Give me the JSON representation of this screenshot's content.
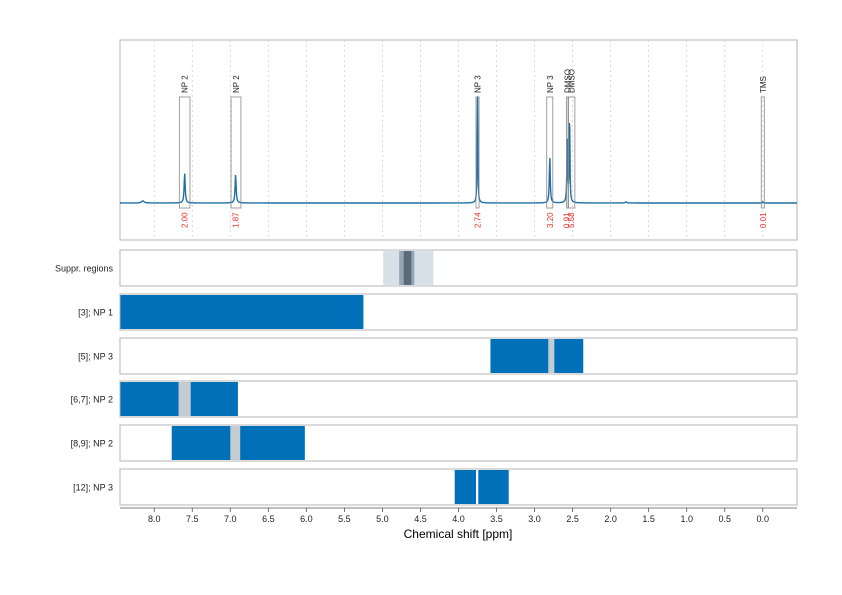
{
  "chart_data": {
    "type": "line",
    "title": "",
    "xlabel": "Chemical shift [ppm]",
    "xlim": [
      8.45,
      -0.45
    ],
    "x_reversed": true,
    "grid": true,
    "x_ticks": [
      8.0,
      7.5,
      7.0,
      6.5,
      6.0,
      5.5,
      5.0,
      4.5,
      4.0,
      3.5,
      3.0,
      2.5,
      2.0,
      1.5,
      1.0,
      0.5,
      0.0
    ],
    "x_tick_labels": [
      "8.0",
      "7.5",
      "7.0",
      "6.5",
      "6.0",
      "5.5",
      "5.0",
      "4.5",
      "4.0",
      "3.5",
      "3.0",
      "2.5",
      "2.0",
      "1.5",
      "1.0",
      "0.5",
      "0.0"
    ],
    "spectrum_color": "#1f6fa8",
    "integral_color": "#e8302a",
    "box_color": "#888888",
    "spectrum": {
      "baseline": 0.0,
      "ylim": [
        -0.3,
        1.0
      ],
      "peaks": [
        {
          "x": 7.6,
          "h": 0.28,
          "w": 0.008
        },
        {
          "x": 6.93,
          "h": 0.27,
          "w": 0.008
        },
        {
          "x": 3.75,
          "h": 1.0,
          "w": 0.005
        },
        {
          "x": 2.8,
          "h": 0.44,
          "w": 0.007
        },
        {
          "x": 2.57,
          "h": 0.58,
          "w": 0.006
        },
        {
          "x": 2.54,
          "h": 0.92,
          "w": 0.005
        },
        {
          "x": 8.15,
          "h": 0.02,
          "w": 0.02
        },
        {
          "x": 1.8,
          "h": 0.01,
          "w": 0.01
        },
        {
          "x": 0.0,
          "h": 0.01,
          "w": 0.005
        }
      ]
    },
    "peak_annotations": [
      {
        "label": "NP 2",
        "x0": 7.67,
        "x1": 7.53,
        "integral": "2.00",
        "int_x": 7.6
      },
      {
        "label": "NP 2",
        "x0": 6.99,
        "x1": 6.86,
        "integral": "1.87",
        "int_x": 6.93
      },
      {
        "label": "NP 3",
        "x0": 3.77,
        "x1": 3.73,
        "integral": "2.74",
        "int_x": 3.75
      },
      {
        "label": "NP 3",
        "x0": 2.84,
        "x1": 2.76,
        "integral": "3.20",
        "int_x": 2.8
      },
      {
        "label": "DMSO",
        "x0": 2.58,
        "x1": 2.56,
        "integral": "0.91",
        "int_x": 2.58
      },
      {
        "label": "DMSO",
        "x0": 2.56,
        "x1": 2.47,
        "integral": "5.58",
        "int_x": 2.52
      },
      {
        "label": "TMS",
        "x0": 0.02,
        "x1": -0.02,
        "integral": "0.01",
        "int_x": 0.0
      }
    ],
    "tracks": [
      {
        "label": "Suppr. regions",
        "segments": [
          {
            "x0": 4.99,
            "x1": 4.33,
            "color": "#d8e0e8"
          },
          {
            "x0": 4.78,
            "x1": 4.58,
            "color": "#95a5b3"
          },
          {
            "x0": 4.72,
            "x1": 4.62,
            "color": "#5a6a78"
          }
        ]
      },
      {
        "label": "[3]; NP 1",
        "segments": [
          {
            "x0": 8.45,
            "x1": 5.25,
            "color": "#0070b8"
          }
        ]
      },
      {
        "label": "[5]; NP 3",
        "segments": [
          {
            "x0": 3.58,
            "x1": 2.36,
            "color": "#0070b8"
          },
          {
            "x0": 2.82,
            "x1": 2.74,
            "color": "#c4ccd2"
          }
        ]
      },
      {
        "label": "[6,7]; NP 2",
        "segments": [
          {
            "x0": 8.45,
            "x1": 6.9,
            "color": "#0070b8"
          },
          {
            "x0": 7.68,
            "x1": 7.52,
            "color": "#c4ccd2"
          }
        ]
      },
      {
        "label": "[8,9]; NP 2",
        "segments": [
          {
            "x0": 7.77,
            "x1": 6.02,
            "color": "#0070b8"
          },
          {
            "x0": 7.0,
            "x1": 6.87,
            "color": "#c4ccd2"
          }
        ]
      },
      {
        "label": "[12]; NP 3",
        "segments": [
          {
            "x0": 4.05,
            "x1": 3.34,
            "color": "#0070b8"
          },
          {
            "x0": 3.77,
            "x1": 3.74,
            "color": "#ffffff"
          }
        ]
      }
    ]
  }
}
